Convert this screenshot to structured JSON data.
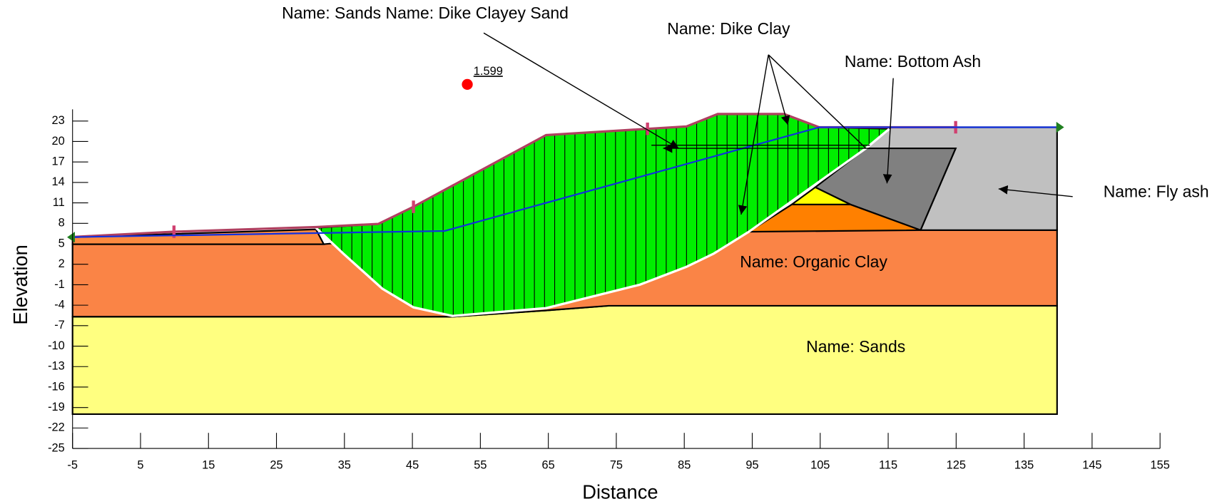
{
  "chart_data": {
    "type": "slope",
    "xlabel": "Distance",
    "ylabel": "Elevation",
    "xlim": [
      -5,
      155
    ],
    "ylim": [
      -25,
      23
    ],
    "xticks": [
      -5,
      5,
      15,
      25,
      35,
      45,
      55,
      65,
      75,
      85,
      95,
      105,
      115,
      125,
      135,
      145,
      155
    ],
    "yticks": [
      -25,
      -22,
      -19,
      -16,
      -13,
      -10,
      -7,
      -4,
      -1,
      2,
      5,
      8,
      11,
      14,
      17,
      20,
      23
    ],
    "factor_of_safety": 1.599,
    "annotations": [
      "Name: Sands Name: Dike Clayey Sand",
      "Name: Dike Clay",
      "Name: Bottom Ash",
      "Name: Fly ash",
      "Name: Organic Clay",
      "Name: Sands"
    ]
  }
}
